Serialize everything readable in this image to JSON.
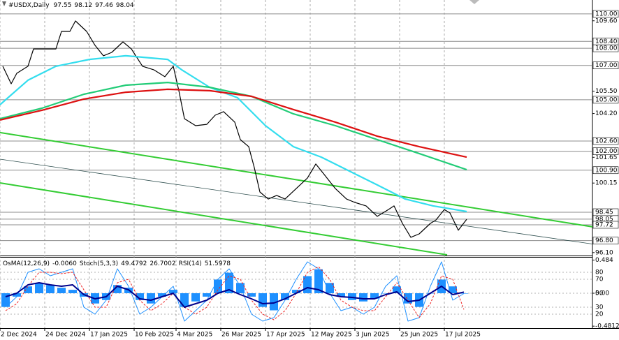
{
  "chart_data": [
    {
      "type": "line",
      "title": "#USDX,Daily",
      "ohlc": [
        97.55,
        98.12,
        97.46,
        98.04
      ],
      "xlim": [
        0,
        212
      ],
      "xticks": [
        {
          "value": 0,
          "label": "2 Dec 2024"
        },
        {
          "value": 16,
          "label": "24 Dec 2024"
        },
        {
          "value": 32,
          "label": "17 Jan 2025"
        },
        {
          "value": 48,
          "label": "10 Feb 2025"
        },
        {
          "value": 63,
          "label": "4 Mar 2025"
        },
        {
          "value": 79,
          "label": "26 Mar 2025"
        },
        {
          "value": 95,
          "label": "17 Apr 2025"
        },
        {
          "value": 111,
          "label": "12 May 2025"
        },
        {
          "value": 127,
          "label": "3 Jun 2025"
        },
        {
          "value": 143,
          "label": "25 Jun 2025"
        },
        {
          "value": 159,
          "label": "17 Jul 2025"
        }
      ],
      "ylim": [
        95.93,
        110.81
      ],
      "yticks": [
        {
          "value": 109.6,
          "label": "109.60"
        },
        {
          "value": 105.5,
          "label": "105.50"
        },
        {
          "value": 104.2,
          "label": "104.20"
        },
        {
          "value": 101.65,
          "label": "101.65"
        },
        {
          "value": 100.15,
          "label": "100.15"
        },
        {
          "value": 96.1,
          "label": "96.10"
        }
      ],
      "levels": [
        {
          "value": 110,
          "label": "110.00"
        },
        {
          "value": 108.4,
          "label": "108.40"
        },
        {
          "value": 108,
          "label": "108.00"
        },
        {
          "value": 107,
          "label": "107.00"
        },
        {
          "value": 105,
          "label": "105.00"
        },
        {
          "value": 102.6,
          "label": "102.60"
        },
        {
          "value": 102,
          "label": "102.00"
        },
        {
          "value": 100.9,
          "label": "100.90"
        },
        {
          "value": 98.45,
          "label": "98.45"
        },
        {
          "value": 98.05,
          "label": "98.05"
        },
        {
          "value": 97.72,
          "label": "97.72"
        },
        {
          "value": 96.8,
          "label": "96.80"
        }
      ],
      "level_color": "#8c8c8c",
      "grid": true,
      "trend_lines": [
        {
          "color": "#33cc33",
          "x": [
            0,
            212
          ],
          "values": [
            103.09,
            97.6
          ]
        },
        {
          "color": "#2f4f4f",
          "x": [
            0,
            212
          ],
          "values": [
            101.54,
            96.6
          ]
        },
        {
          "color": "#33cc33",
          "x": [
            0,
            160
          ],
          "values": [
            100.16,
            95.97
          ]
        }
      ],
      "series": [
        {
          "color": "#000000",
          "width": 1.2,
          "x": [
            1,
            4,
            6,
            10,
            12,
            16,
            20,
            22,
            25,
            27,
            31,
            34,
            37,
            40,
            44,
            47,
            51,
            55,
            59,
            62,
            64,
            66,
            70,
            74,
            77,
            80,
            84,
            86,
            89,
            91,
            93,
            96,
            99,
            102,
            106,
            110,
            113,
            116,
            120,
            124,
            127,
            131,
            135,
            139,
            141,
            144,
            147,
            150,
            154,
            156,
            159,
            161,
            164,
            167
          ],
          "values": [
            106.95,
            105.93,
            106.54,
            106.95,
            107.96,
            107.96,
            107.96,
            108.98,
            108.98,
            109.59,
            108.98,
            108.17,
            107.56,
            107.76,
            108.37,
            107.96,
            106.95,
            106.75,
            106.34,
            106.95,
            105.53,
            103.9,
            103.49,
            103.57,
            104.1,
            104.31,
            103.7,
            102.68,
            102.27,
            101.05,
            99.63,
            99.22,
            99.43,
            99.22,
            99.83,
            100.44,
            101.26,
            100.65,
            99.83,
            99.22,
            99.02,
            98.82,
            98.21,
            98.61,
            98.82,
            97.8,
            96.99,
            97.19,
            97.8,
            98.0,
            98.61,
            98.41,
            97.4,
            98.04
          ]
        },
        {
          "color": "#33ddee",
          "width": 2.2,
          "x": [
            0,
            10,
            20,
            32,
            45,
            60,
            65,
            75,
            85,
            95,
            105,
            115,
            125,
            135,
            145,
            155,
            167
          ],
          "values": [
            104.71,
            106.14,
            106.95,
            107.35,
            107.56,
            107.35,
            106.75,
            105.73,
            105.12,
            103.49,
            102.27,
            101.66,
            100.85,
            100.04,
            99.22,
            98.82,
            98.49
          ]
        },
        {
          "color": "#22cc77",
          "width": 2.2,
          "x": [
            0,
            15,
            30,
            45,
            60,
            75,
            90,
            105,
            120,
            135,
            150,
            167
          ],
          "values": [
            103.9,
            104.51,
            105.32,
            105.85,
            106.01,
            105.73,
            105.2,
            104.18,
            103.49,
            102.68,
            101.87,
            100.93
          ]
        },
        {
          "color": "#dd1111",
          "width": 2.2,
          "x": [
            0,
            15,
            30,
            45,
            60,
            75,
            90,
            105,
            120,
            135,
            150,
            167
          ],
          "values": [
            103.82,
            104.39,
            105.04,
            105.44,
            105.61,
            105.53,
            105.2,
            104.43,
            103.7,
            102.88,
            102.27,
            101.66
          ]
        }
      ]
    },
    {
      "type": "combo",
      "readouts": [
        {
          "label": "OsMA(12,26,9)",
          "values": [
            {
              "value": -0.006,
              "label": "-0.0060"
            }
          ]
        },
        {
          "label": "Stoch(5,3,3)",
          "values": [
            49.4792,
            26.7002
          ]
        },
        {
          "label": "RSI(14)",
          "values": [
            51.5978
          ]
        }
      ],
      "xlim": [
        0,
        212
      ],
      "ylim": [
        0,
        100
      ],
      "yticks": [
        80,
        70,
        50,
        30,
        20
      ],
      "y2lim": [
        -0.51,
        0.51
      ],
      "y2ticks": [
        0.484,
        {
          "value": 0,
          "label": "0.00"
        },
        -0.4812
      ],
      "series": [
        {
          "style": "bar",
          "axis": "y2",
          "color": "#1e90ff",
          "x": [
            2,
            6,
            10,
            14,
            18,
            22,
            26,
            30,
            34,
            38,
            42,
            46,
            50,
            54,
            58,
            62,
            66,
            70,
            74,
            78,
            82,
            86,
            90,
            94,
            98,
            102,
            106,
            110,
            114,
            118,
            122,
            126,
            130,
            134,
            138,
            142,
            146,
            150,
            154,
            158,
            162,
            166
          ],
          "values": [
            -0.2,
            -0.05,
            0.1,
            0.15,
            0.12,
            0.08,
            0.05,
            -0.05,
            -0.15,
            -0.1,
            0.12,
            0.08,
            -0.1,
            -0.15,
            -0.05,
            0.05,
            -0.2,
            -0.12,
            -0.05,
            0.2,
            0.3,
            0.15,
            -0.05,
            -0.2,
            -0.25,
            -0.1,
            0.05,
            0.25,
            0.35,
            0.15,
            -0.05,
            -0.1,
            -0.12,
            -0.08,
            0,
            0.1,
            -0.15,
            -0.2,
            0,
            0.2,
            0.1,
            -0.006
          ]
        },
        {
          "style": "line",
          "color": "#1e90ff",
          "width": 1,
          "x": [
            2,
            6,
            10,
            14,
            18,
            22,
            26,
            30,
            34,
            38,
            42,
            46,
            50,
            54,
            58,
            62,
            66,
            70,
            74,
            78,
            82,
            86,
            90,
            94,
            98,
            102,
            106,
            110,
            114,
            118,
            122,
            126,
            130,
            134,
            138,
            142,
            146,
            150,
            154,
            158,
            162,
            166
          ],
          "values": [
            30,
            45,
            80,
            85,
            75,
            80,
            85,
            30,
            20,
            40,
            85,
            60,
            20,
            30,
            45,
            60,
            10,
            25,
            40,
            70,
            85,
            60,
            20,
            10,
            15,
            40,
            70,
            95,
            85,
            50,
            25,
            30,
            20,
            30,
            60,
            75,
            10,
            15,
            60,
            95,
            40,
            49.4792
          ]
        },
        {
          "style": "line",
          "dash": true,
          "color": "#ee2222",
          "width": 1,
          "x": [
            2,
            6,
            10,
            14,
            18,
            22,
            26,
            30,
            34,
            38,
            42,
            46,
            50,
            54,
            58,
            62,
            66,
            70,
            74,
            78,
            82,
            86,
            90,
            94,
            98,
            102,
            106,
            110,
            114,
            118,
            122,
            126,
            130,
            134,
            138,
            142,
            146,
            150,
            154,
            158,
            162,
            166
          ],
          "values": [
            25,
            35,
            60,
            80,
            80,
            78,
            80,
            55,
            30,
            30,
            65,
            70,
            40,
            25,
            35,
            50,
            30,
            20,
            30,
            55,
            75,
            70,
            40,
            20,
            12,
            25,
            50,
            80,
            88,
            70,
            40,
            30,
            25,
            25,
            45,
            65,
            40,
            15,
            35,
            75,
            70,
            26.7002
          ]
        },
        {
          "style": "line",
          "color": "#00008b",
          "width": 2,
          "x": [
            2,
            6,
            10,
            14,
            18,
            22,
            26,
            30,
            34,
            38,
            42,
            46,
            50,
            54,
            58,
            62,
            66,
            70,
            74,
            78,
            82,
            86,
            90,
            94,
            98,
            102,
            106,
            110,
            114,
            118,
            122,
            126,
            130,
            134,
            138,
            142,
            146,
            150,
            154,
            158,
            162,
            166
          ],
          "values": [
            45,
            50,
            62,
            65,
            62,
            60,
            62,
            48,
            42,
            45,
            60,
            55,
            42,
            40,
            45,
            50,
            30,
            35,
            40,
            50,
            55,
            48,
            42,
            35,
            36,
            42,
            50,
            58,
            55,
            48,
            45,
            44,
            42,
            42,
            48,
            52,
            38,
            40,
            50,
            60,
            48,
            51.5978
          ]
        }
      ]
    }
  ]
}
